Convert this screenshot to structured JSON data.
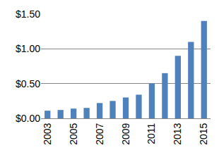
{
  "chart_data": {
    "type": "bar",
    "categories": [
      "2003",
      null,
      "2005",
      null,
      "2007",
      null,
      "2009",
      null,
      "2011",
      null,
      "2013",
      null,
      "2015"
    ],
    "values": [
      0.11,
      0.12,
      0.14,
      0.15,
      0.22,
      0.25,
      0.3,
      0.34,
      0.5,
      0.65,
      0.9,
      1.1,
      1.4
    ],
    "color": "#4f81bd",
    "ylim": [
      0,
      1.5
    ],
    "yticks": [
      {
        "value": 0,
        "label": "$0.00"
      },
      {
        "value": 0.5,
        "label": "$0.50"
      },
      {
        "value": 1,
        "label": "$1.00"
      },
      {
        "value": 1.5,
        "label": "$1.50"
      }
    ],
    "grid": true
  }
}
